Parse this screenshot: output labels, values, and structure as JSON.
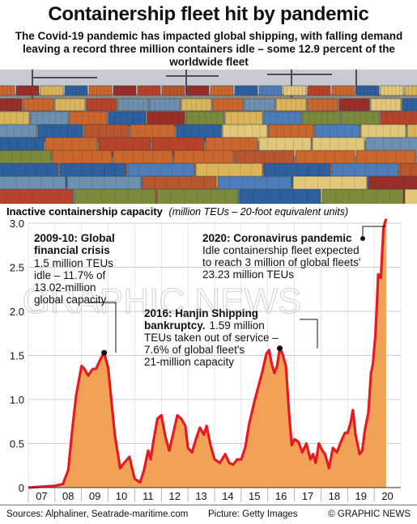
{
  "headline": "Containership fleet hit by pandemic",
  "subhead": "The Covid-19 pandemic has impacted global shipping, with falling demand leaving a record three million containers idle – some 12.9 percent of the worldwide fleet",
  "watermark": "GRAPHIC NEWS",
  "chart_data": {
    "type": "area",
    "title": "Inactive containership capacity",
    "unit_note": "(million TEUs – 20-foot equivalent units)",
    "xlabel": "",
    "ylabel": "",
    "ylim": [
      0,
      3.0
    ],
    "yticks": [
      "0",
      "0.5",
      "1.0",
      "1.5",
      "2.0",
      "2.5",
      "3.0"
    ],
    "xlim": [
      2007,
      2021
    ],
    "xticks": [
      "07",
      "08",
      "09",
      "10",
      "11",
      "12",
      "13",
      "14",
      "15",
      "16",
      "17",
      "18",
      "19",
      "20"
    ],
    "grid": true,
    "fill_color": "#f2a256",
    "line_color": "#e31b23",
    "series": [
      {
        "x": [
          2007.0,
          2007.5,
          2008.0,
          2008.3,
          2008.5,
          2008.65,
          2008.8,
          2009.0,
          2009.12,
          2009.25,
          2009.4,
          2009.55,
          2009.7,
          2009.85,
          2010.0,
          2010.1,
          2010.25,
          2010.45,
          2010.6,
          2010.8,
          2010.9,
          2011.0,
          2011.2,
          2011.35,
          2011.5,
          2011.6,
          2011.7,
          2011.85,
          2012.0,
          2012.15,
          2012.3,
          2012.45,
          2012.6,
          2012.75,
          2012.9,
          2013.0,
          2013.15,
          2013.3,
          2013.45,
          2013.6,
          2013.7,
          2013.85,
          2014.0,
          2014.2,
          2014.4,
          2014.55,
          2014.7,
          2014.85,
          2015.0,
          2015.15,
          2015.3,
          2015.5,
          2015.65,
          2015.8,
          2015.95,
          2016.05,
          2016.15,
          2016.25,
          2016.35,
          2016.45,
          2016.55,
          2016.68,
          2016.8,
          2016.9,
          2017.0,
          2017.15,
          2017.3,
          2017.45,
          2017.6,
          2017.7,
          2017.8,
          2017.92,
          2018.05,
          2018.15,
          2018.3,
          2018.45,
          2018.6,
          2018.75,
          2018.9,
          2019.0,
          2019.1,
          2019.2,
          2019.3,
          2019.45,
          2019.55,
          2019.65,
          2019.78,
          2019.88,
          2019.95,
          2020.05,
          2020.15,
          2020.25,
          2020.35,
          2020.45
        ],
        "y": [
          0.0,
          0.01,
          0.02,
          0.04,
          0.2,
          0.65,
          1.05,
          1.38,
          1.34,
          1.27,
          1.34,
          1.35,
          1.45,
          1.53,
          1.36,
          1.05,
          0.6,
          0.22,
          0.28,
          0.35,
          0.22,
          0.1,
          0.06,
          0.2,
          0.42,
          0.32,
          0.52,
          0.78,
          0.82,
          0.58,
          0.42,
          0.62,
          0.82,
          0.78,
          0.7,
          0.45,
          0.4,
          0.55,
          0.68,
          0.6,
          0.7,
          0.48,
          0.32,
          0.28,
          0.38,
          0.28,
          0.26,
          0.32,
          0.32,
          0.45,
          0.72,
          0.98,
          1.15,
          1.32,
          1.52,
          1.56,
          1.4,
          1.3,
          1.38,
          1.58,
          1.52,
          1.38,
          0.85,
          0.48,
          0.55,
          0.52,
          0.4,
          0.5,
          0.32,
          0.38,
          0.28,
          0.5,
          0.42,
          0.38,
          0.22,
          0.45,
          0.4,
          0.52,
          0.62,
          0.62,
          0.72,
          0.88,
          0.6,
          0.38,
          0.42,
          0.65,
          0.85,
          1.3,
          1.4,
          1.75,
          2.42,
          2.38,
          2.95,
          3.05
        ]
      }
    ],
    "annotations": [
      {
        "heading": "2009-10: Global financial crisis",
        "lines": [
          "1.5 million TEUs",
          "idle – 11.7% of",
          "13.02-million",
          "global capacity"
        ],
        "point": [
          2009.85,
          1.53
        ]
      },
      {
        "heading": "2016: Hanjin Shipping",
        "heading2": "bankruptcy.",
        "lines": [
          "1.59 million",
          "TEUs taken out of service –",
          "7.6% of global fleet's",
          "21-million capacity"
        ],
        "point": [
          2016.45,
          1.58
        ]
      },
      {
        "heading": "2020: Coronavirus pandemic",
        "lines": [
          "Idle containership fleet expected",
          "to reach 3 million of global fleets'",
          "23.23 million TEUs"
        ],
        "point": [
          2020.45,
          3.05
        ]
      }
    ]
  },
  "footer": {
    "sources": "Sources: Alphaliner, Seatrade-maritime.com",
    "picture": "Picture: Getty Images",
    "credit": "© GRAPHIC NEWS"
  }
}
